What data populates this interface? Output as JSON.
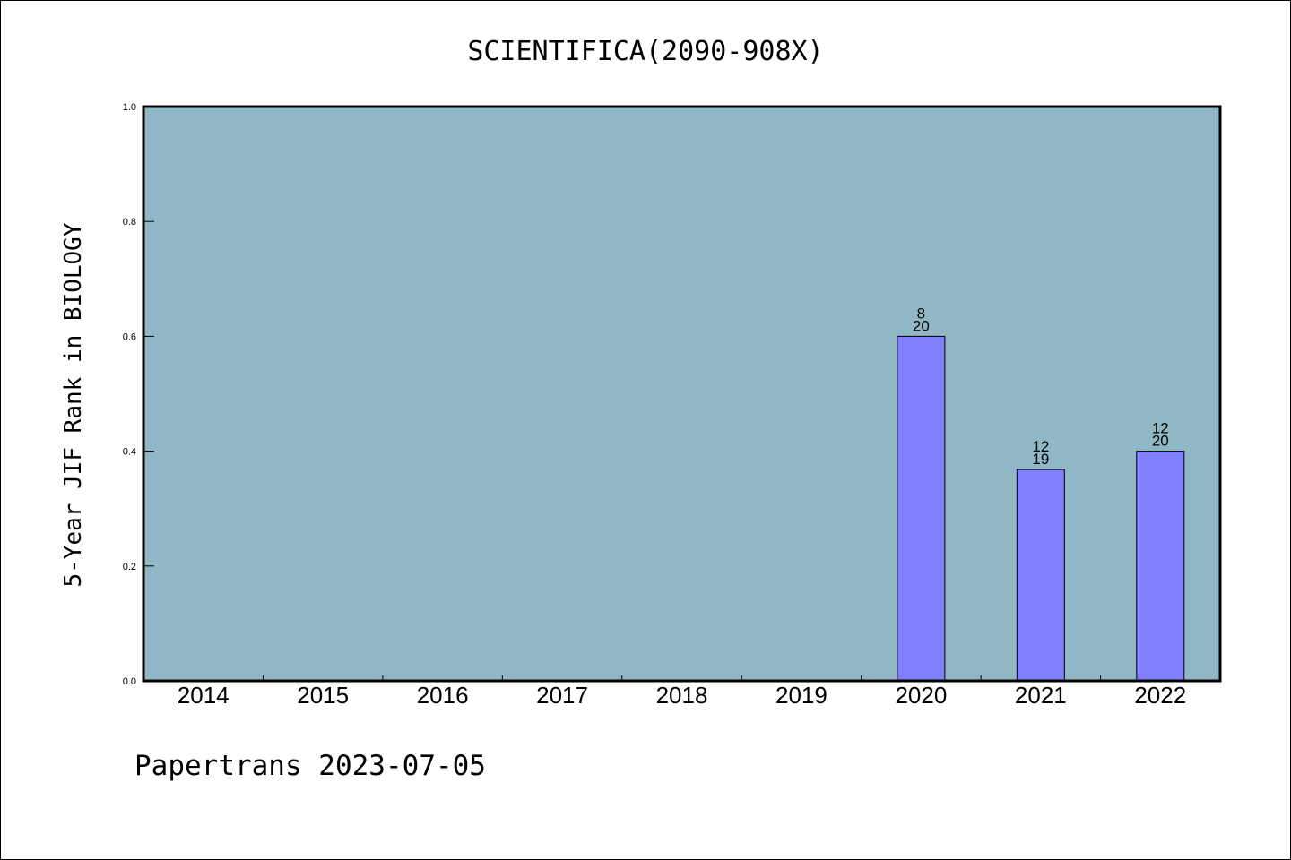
{
  "chart_data": {
    "type": "bar",
    "title": "SCIENTIFICA(2090-908X)",
    "ylabel": "5-Year JIF Rank in BIOLOGY",
    "xlabel": "",
    "categories": [
      "2014",
      "2015",
      "2016",
      "2017",
      "2018",
      "2019",
      "2020",
      "2021",
      "2022"
    ],
    "values": [
      null,
      null,
      null,
      null,
      null,
      null,
      0.6,
      0.368,
      0.4
    ],
    "bar_labels": [
      null,
      null,
      null,
      null,
      null,
      null,
      {
        "rank": "8",
        "total": "20"
      },
      {
        "rank": "12",
        "total": "19"
      },
      {
        "rank": "12",
        "total": "20"
      }
    ],
    "ylim": [
      0,
      1.0
    ],
    "yticks": [
      "0.0",
      "0.2",
      "0.4",
      "0.6",
      "0.8",
      "1.0"
    ],
    "grid": false,
    "colors": {
      "plot_background": "#8fb7c5",
      "bar_fill": "#8080ff",
      "bar_edge": "#000000",
      "axis": "#000000"
    }
  },
  "footer": {
    "text": "Papertrans 2023-07-05"
  }
}
